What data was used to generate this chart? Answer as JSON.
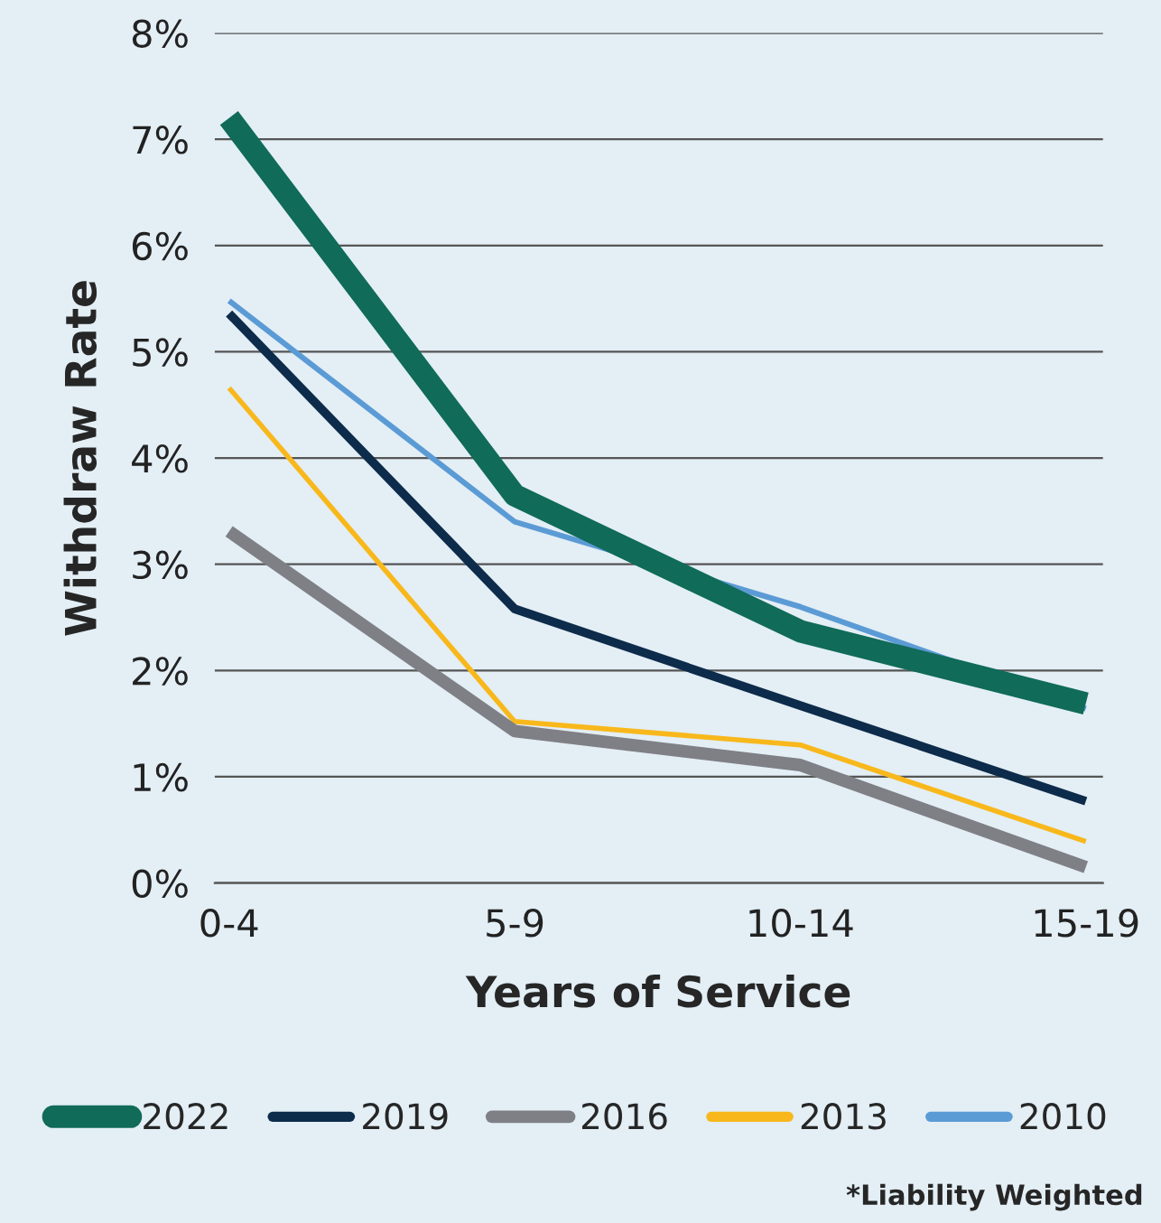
{
  "chart_data": {
    "type": "line",
    "xlabel": "Years of Service",
    "ylabel": "Withdraw Rate",
    "categories": [
      "0-4",
      "5-9",
      "10-14",
      "15-19"
    ],
    "series": [
      {
        "name": "2022",
        "color": "#106b59",
        "values": [
          7.2,
          3.65,
          2.37,
          1.69
        ]
      },
      {
        "name": "2019",
        "color": "#0d2b4a",
        "values": [
          5.36,
          2.58,
          1.67,
          0.77
        ]
      },
      {
        "name": "2016",
        "color": "#7f8086",
        "values": [
          3.31,
          1.43,
          1.11,
          0.15
        ]
      },
      {
        "name": "2013",
        "color": "#f8b81c",
        "values": [
          4.66,
          1.52,
          1.3,
          0.39
        ]
      },
      {
        "name": "2010",
        "color": "#5b9bd5",
        "values": [
          5.48,
          3.4,
          2.6,
          1.64
        ]
      }
    ],
    "ylim": [
      0,
      8
    ],
    "yticks": [
      {
        "value": 0,
        "label": "0%"
      },
      {
        "value": 1,
        "label": "1%"
      },
      {
        "value": 2,
        "label": "2%"
      },
      {
        "value": 3,
        "label": "3%"
      },
      {
        "value": 4,
        "label": "4%"
      },
      {
        "value": 5,
        "label": "5%"
      },
      {
        "value": 6,
        "label": "6%"
      },
      {
        "value": 7,
        "label": "7%"
      },
      {
        "value": 8,
        "label": "8%"
      }
    ],
    "grid": "y",
    "legend": "bottom",
    "marker": "none",
    "line_style": "solid",
    "annotations": [
      "*Liability Weighted"
    ]
  }
}
